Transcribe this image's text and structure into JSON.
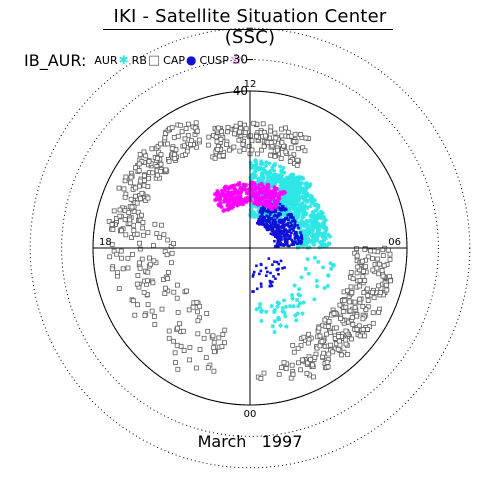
{
  "chart_data": {
    "type": "scatter",
    "title": "IKI - Satellite Situation Center (SSC)",
    "subtitle": "IB_AUR:",
    "plot_kind": "polar magnetic local time vs latitude",
    "legend": [
      {
        "label": "AUR",
        "marker": "star",
        "color": "#35e0e0"
      },
      {
        "label": "RB",
        "marker": "open-square",
        "color": "#606060"
      },
      {
        "label": "CAP",
        "marker": "dot",
        "color": "#1010d8"
      },
      {
        "label": "CUSP",
        "marker": "open-star",
        "color": "#ff00ff"
      }
    ],
    "legend_placement": "top-left",
    "angle_labels": [
      "12",
      "06",
      "00",
      "18"
    ],
    "radial_labels": [
      "40",
      "30"
    ],
    "radial_ticks": [
      40,
      30,
      20
    ],
    "colatitude_range": [
      0,
      50
    ],
    "grid": true,
    "period": "March   1997",
    "series": [
      {
        "name": "AUR",
        "regions": [
          {
            "mlt": [
              13.9,
              18.0
            ],
            "colat": [
              15,
              26
            ]
          },
          {
            "mlt": [
              12.0,
              15.0
            ],
            "colat": [
              10,
              28
            ]
          },
          {
            "mlt": [
              18.5,
              24.0
            ],
            "colat": [
              18,
              28
            ],
            "sparse": true
          }
        ]
      },
      {
        "name": "RB",
        "regions": [
          {
            "mlt": [
              10.5,
              14.0
            ],
            "colat": [
              30,
              40
            ]
          },
          {
            "mlt": [
              6.5,
              10.5
            ],
            "colat": [
              36,
              46
            ]
          },
          {
            "mlt": [
              18.0,
              22.5
            ],
            "colat": [
              33,
              46
            ]
          },
          {
            "mlt": [
              22.0,
              24.0
            ],
            "colat": [
              36,
              44
            ],
            "sparse": true
          },
          {
            "mlt": [
              1.0,
              7.0
            ],
            "colat": [
              24,
              45
            ],
            "sparse": true
          }
        ]
      },
      {
        "name": "CAP",
        "regions": [
          {
            "mlt": [
              13.0,
              17.8
            ],
            "colat": [
              8,
              17
            ]
          },
          {
            "mlt": [
              19.5,
              23.8
            ],
            "colat": [
              6,
              14
            ],
            "sparse": true
          }
        ]
      },
      {
        "name": "CUSP",
        "regions": [
          {
            "mlt": [
              9.6,
              14.2
            ],
            "colat": [
              14,
              21
            ]
          }
        ]
      }
    ]
  }
}
